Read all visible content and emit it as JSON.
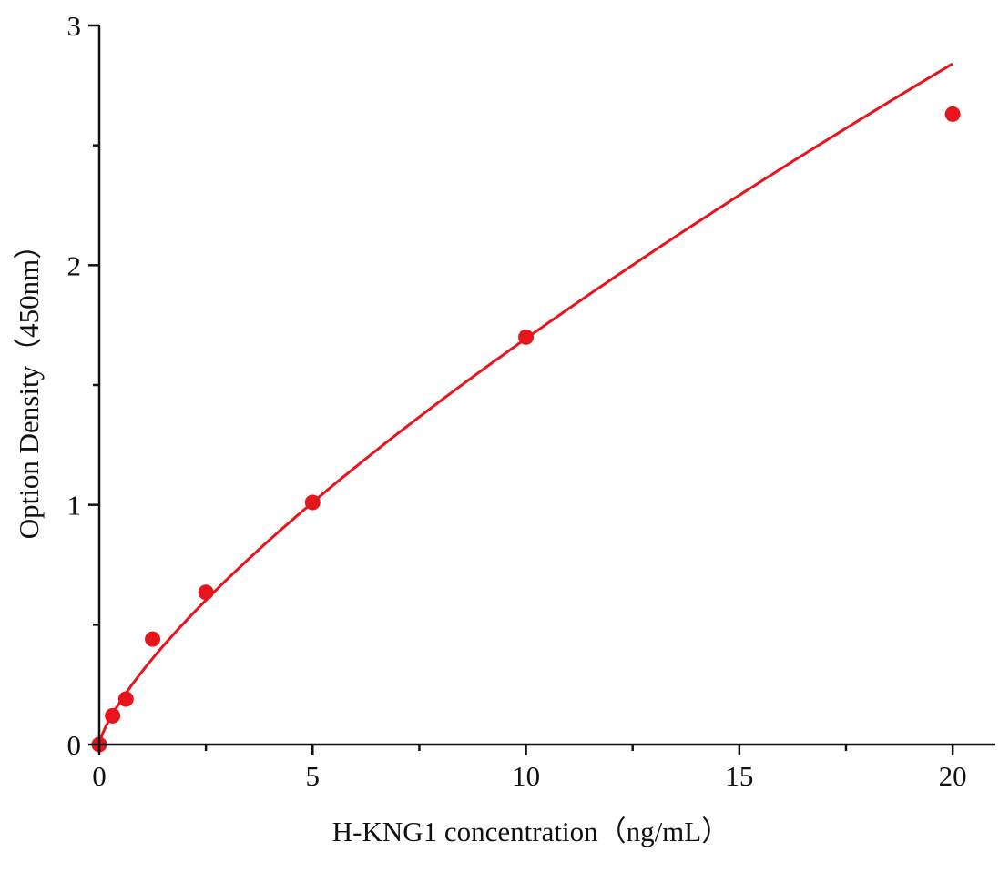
{
  "chart_data": {
    "type": "scatter",
    "title": "",
    "xlabel": "H-KNG1 concentration（ng/mL）",
    "ylabel": "Option Density（450nm）",
    "xlim": [
      0,
      21
    ],
    "ylim": [
      0,
      3
    ],
    "x_ticks": [
      0,
      5,
      10,
      15,
      20
    ],
    "x_tick_labels": [
      "0",
      "5",
      "10",
      "15",
      "20"
    ],
    "x_minor_step": 2.5,
    "y_ticks": [
      0,
      1,
      2,
      3
    ],
    "y_tick_labels": [
      "0",
      "1",
      "2",
      "3"
    ],
    "y_minor_step": 0.5,
    "grid": false,
    "legend": "none",
    "fit_curve": "power-law fitted line",
    "color": "#e8141c",
    "series": [
      {
        "x": [
          0,
          0.3125,
          0.625,
          1.25,
          2.5,
          5,
          10,
          20
        ],
        "y": [
          0.0,
          0.12,
          0.19,
          0.44,
          0.635,
          1.01,
          1.7,
          2.63
        ]
      }
    ]
  }
}
